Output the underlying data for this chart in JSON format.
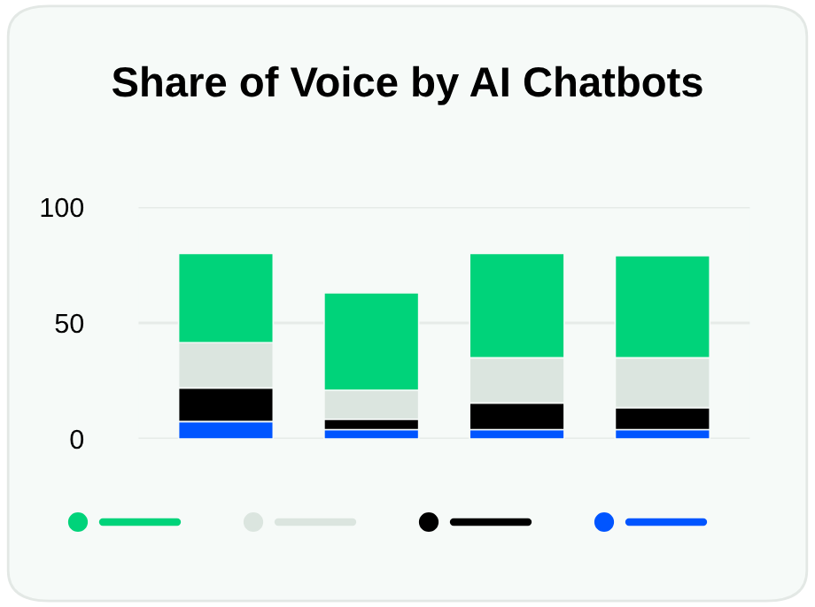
{
  "chart_data": {
    "type": "bar",
    "title": "Share of Voice by AI Chatbots",
    "stacked": true,
    "categories": [
      null,
      null,
      null,
      null
    ],
    "series": [
      {
        "color": "#0055ff",
        "values": [
          7.5,
          4,
          4,
          4
        ]
      },
      {
        "color": "#000000",
        "values": [
          14.5,
          4.5,
          11.5,
          9.5
        ]
      },
      {
        "color": "#dbe5df",
        "values": [
          19.5,
          12.5,
          19.5,
          21.5
        ]
      },
      {
        "color": "#00d37a",
        "values": [
          38.5,
          42,
          45,
          44
        ]
      }
    ],
    "ylim": [
      0,
      100
    ],
    "yticks": [
      0,
      50,
      100
    ],
    "grid": "y"
  }
}
